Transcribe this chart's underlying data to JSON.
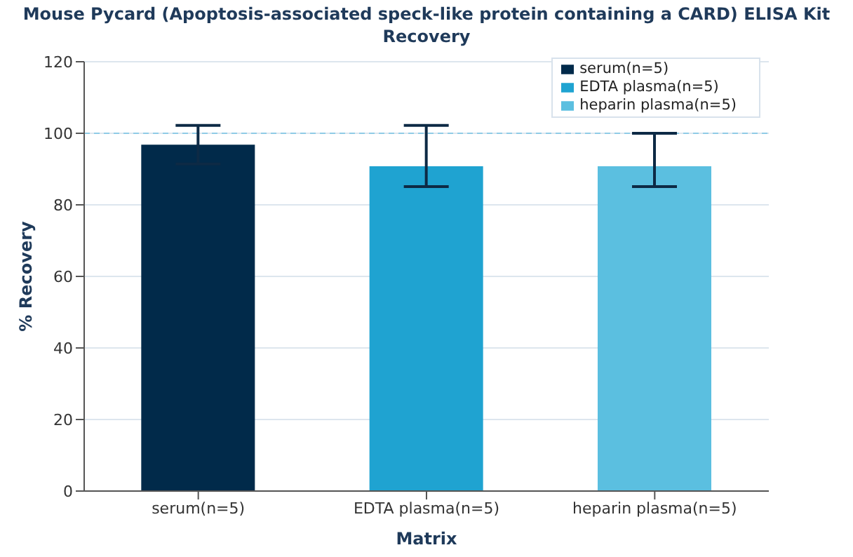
{
  "chart_data": {
    "type": "bar",
    "title": "Mouse Pycard (Apoptosis-associated speck-like protein containing a CARD) ELISA Kit",
    "subtitle": "Recovery",
    "xlabel": "Matrix",
    "ylabel": "% Recovery",
    "categories": [
      "serum(n=5)",
      "EDTA plasma(n=5)",
      "heparin plasma(n=5)"
    ],
    "series": [
      {
        "name": "serum(n=5)",
        "color": "#012a4a",
        "values": [
          96.8,
          null,
          null
        ],
        "errors": [
          5.4,
          null,
          null
        ]
      },
      {
        "name": "EDTA plasma(n=5)",
        "color": "#1fa3d1",
        "values": [
          null,
          90.8,
          null
        ],
        "errors": [
          null,
          [
            85.1,
            102.2
          ],
          null
        ]
      },
      {
        "name": "heparin plasma(n=5)",
        "color": "#5bbfe0",
        "values": [
          null,
          null,
          90.8
        ],
        "errors": [
          null,
          null,
          [
            85.1,
            100
          ]
        ]
      }
    ],
    "ylim": [
      0,
      120
    ],
    "yticks": [
      0,
      20,
      40,
      60,
      80,
      100,
      120
    ],
    "grid": "y",
    "legend": "top right",
    "ref_lines": [
      {
        "axis": "y",
        "value": 100,
        "color": "#8fcbe6",
        "line_style": "dashed"
      }
    ]
  }
}
